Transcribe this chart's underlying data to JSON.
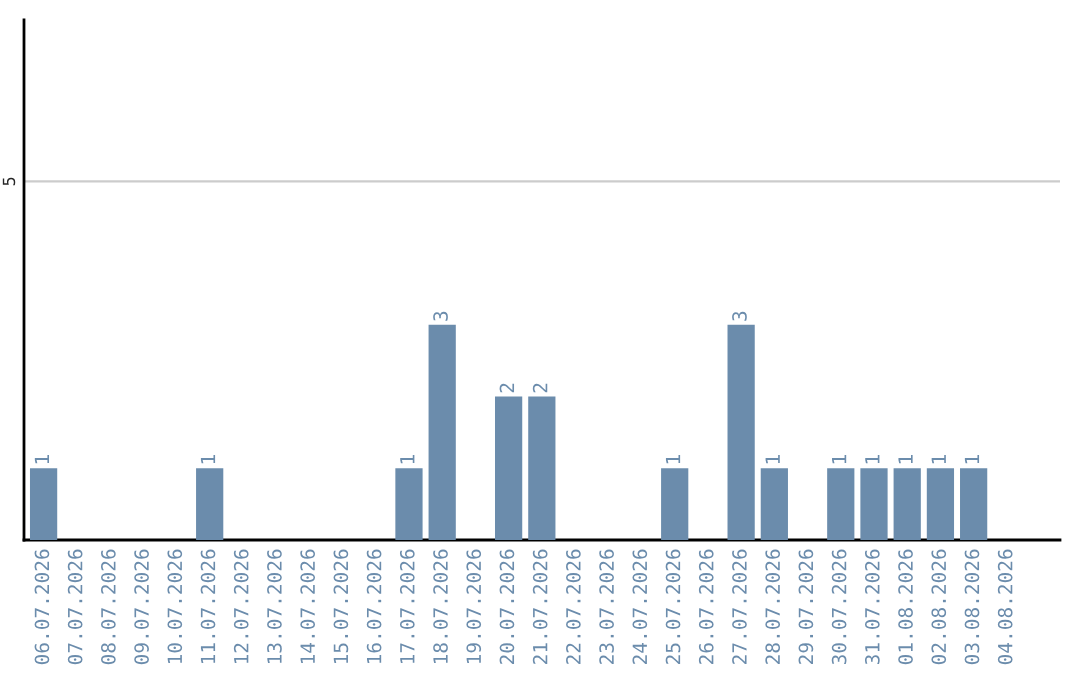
{
  "chart_data": {
    "type": "bar",
    "categories": [
      "06.07.2026",
      "07.07.2026",
      "08.07.2026",
      "09.07.2026",
      "10.07.2026",
      "11.07.2026",
      "12.07.2026",
      "13.07.2026",
      "14.07.2026",
      "15.07.2026",
      "16.07.2026",
      "17.07.2026",
      "18.07.2026",
      "19.07.2026",
      "20.07.2026",
      "21.07.2026",
      "22.07.2026",
      "23.07.2026",
      "24.07.2026",
      "25.07.2026",
      "26.07.2026",
      "27.07.2026",
      "28.07.2026",
      "29.07.2026",
      "30.07.2026",
      "31.07.2026",
      "01.08.2026",
      "02.08.2026",
      "03.08.2026",
      "04.08.2026"
    ],
    "values": [
      1,
      null,
      null,
      null,
      null,
      1,
      null,
      null,
      null,
      null,
      null,
      1,
      3,
      null,
      2,
      2,
      null,
      null,
      null,
      1,
      null,
      3,
      1,
      null,
      1,
      1,
      1,
      1,
      1,
      null
    ],
    "value_labels": [
      "1",
      null,
      null,
      null,
      null,
      "1",
      null,
      null,
      null,
      null,
      null,
      "1",
      "3",
      null,
      "2",
      "2",
      null,
      null,
      null,
      "1",
      null,
      "3",
      "1",
      null,
      "1",
      "1",
      "1",
      "1",
      "1",
      null
    ],
    "color": "#6b8cac",
    "ylim": [
      0,
      7.25
    ],
    "yticks": [
      5
    ],
    "grid": "y"
  }
}
